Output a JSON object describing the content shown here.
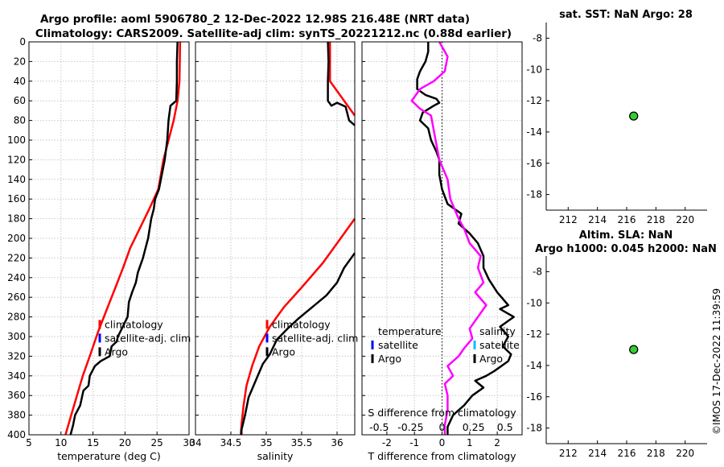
{
  "figure": {
    "title_line1": "Argo profile: aoml 5906780_2 12-Dec-2022 12.98S 216.48E (NRT data)",
    "title_line2": "Climatology: CARS2009. Satellite-adj clim: synTS_20221212.nc (0.88d earlier)",
    "footer_stamp": "©IMOS 17-Dec-2022 11:39:59"
  },
  "colors": {
    "climatology": "#ff0000",
    "satellite": "#0000ff",
    "argo": "#000000",
    "salinity_diff": "#ff00ff",
    "sat_salinity": "#00bfff",
    "marker": "#33cc33",
    "grid": "#c8c8d2"
  },
  "chart_data": [
    {
      "id": "temperature",
      "type": "line",
      "xlabel": "temperature (deg C)",
      "ylim": [
        0,
        400
      ],
      "xlim": [
        5,
        30
      ],
      "xticks": [
        5,
        10,
        15,
        20,
        25,
        30
      ],
      "yticks": [
        0,
        20,
        40,
        60,
        80,
        100,
        120,
        140,
        160,
        180,
        200,
        220,
        240,
        260,
        280,
        300,
        320,
        340,
        360,
        380,
        400
      ],
      "legend": [
        "climatology",
        "satellite-adj. clim",
        "Argo"
      ],
      "series": [
        {
          "name": "climatology",
          "color": "#ff0000",
          "points": [
            [
              28.6,
              0
            ],
            [
              28.5,
              40
            ],
            [
              28.2,
              60
            ],
            [
              27.6,
              80
            ],
            [
              26.8,
              100
            ],
            [
              26.0,
              120
            ],
            [
              25.2,
              150
            ],
            [
              23.8,
              170
            ],
            [
              22.3,
              190
            ],
            [
              20.8,
              210
            ],
            [
              19.7,
              230
            ],
            [
              18.5,
              250
            ],
            [
              17.0,
              275
            ],
            [
              15.8,
              295
            ],
            [
              14.5,
              320
            ],
            [
              13.4,
              340
            ],
            [
              12.5,
              360
            ],
            [
              11.6,
              380
            ],
            [
              10.7,
              400
            ]
          ]
        },
        {
          "name": "Argo",
          "color": "#000000",
          "points": [
            [
              28.2,
              0
            ],
            [
              28.1,
              20
            ],
            [
              28.1,
              40
            ],
            [
              28.0,
              60
            ],
            [
              27.1,
              65
            ],
            [
              26.8,
              80
            ],
            [
              26.6,
              100
            ],
            [
              26.2,
              120
            ],
            [
              25.6,
              140
            ],
            [
              25.3,
              150
            ],
            [
              24.7,
              160
            ],
            [
              24.5,
              170
            ],
            [
              24.1,
              180
            ],
            [
              23.6,
              200
            ],
            [
              23.2,
              210
            ],
            [
              22.8,
              220
            ],
            [
              22.0,
              235
            ],
            [
              21.7,
              245
            ],
            [
              21.1,
              255
            ],
            [
              20.6,
              265
            ],
            [
              20.4,
              280
            ],
            [
              18.9,
              300
            ],
            [
              18.7,
              305
            ],
            [
              17.9,
              310
            ],
            [
              17.6,
              320
            ],
            [
              16.2,
              325
            ],
            [
              15.3,
              330
            ],
            [
              14.5,
              340
            ],
            [
              14.3,
              350
            ],
            [
              13.5,
              355
            ],
            [
              13.0,
              370
            ],
            [
              12.2,
              380
            ],
            [
              11.9,
              390
            ],
            [
              11.5,
              400
            ]
          ]
        }
      ]
    },
    {
      "id": "salinity",
      "type": "line",
      "xlabel": "salinity",
      "ylim": [
        0,
        400
      ],
      "xlim": [
        34,
        36.25
      ],
      "xticks": [
        34,
        34.5,
        35,
        35.5,
        36
      ],
      "legend": [
        "climatology",
        "satellite-adj. clim",
        "Argo"
      ],
      "series": [
        {
          "name": "climatology",
          "color": "#ff0000",
          "points": [
            [
              35.9,
              0
            ],
            [
              35.9,
              40
            ],
            [
              36.0,
              50
            ],
            [
              36.1,
              60
            ],
            [
              36.25,
              75
            ]
          ]
        },
        {
          "name": "climatology_deep",
          "color": "#ff0000",
          "points": [
            [
              36.25,
              180
            ],
            [
              36.0,
              205
            ],
            [
              35.8,
              225
            ],
            [
              35.5,
              250
            ],
            [
              35.25,
              270
            ],
            [
              35.05,
              290
            ],
            [
              34.9,
              310
            ],
            [
              34.8,
              330
            ],
            [
              34.72,
              350
            ],
            [
              34.68,
              370
            ],
            [
              34.65,
              390
            ],
            [
              34.64,
              400
            ]
          ]
        },
        {
          "name": "Argo",
          "color": "#000000",
          "points": [
            [
              35.87,
              0
            ],
            [
              35.88,
              20
            ],
            [
              35.87,
              40
            ],
            [
              35.87,
              60
            ],
            [
              35.92,
              65
            ],
            [
              36.0,
              62
            ],
            [
              36.12,
              66
            ],
            [
              36.17,
              80
            ],
            [
              36.25,
              85
            ]
          ]
        },
        {
          "name": "Argo_deep",
          "color": "#000000",
          "points": [
            [
              36.25,
              215
            ],
            [
              36.1,
              230
            ],
            [
              36.0,
              245
            ],
            [
              35.85,
              258
            ],
            [
              35.65,
              270
            ],
            [
              35.45,
              282
            ],
            [
              35.3,
              292
            ],
            [
              35.15,
              303
            ],
            [
              35.05,
              318
            ],
            [
              34.95,
              328
            ],
            [
              34.85,
              345
            ],
            [
              34.75,
              362
            ],
            [
              34.7,
              380
            ],
            [
              34.65,
              395
            ],
            [
              34.65,
              400
            ]
          ]
        }
      ]
    },
    {
      "id": "difference",
      "type": "line",
      "xlabel": "T difference from climatology",
      "top_label": "S difference from climatology",
      "ylim": [
        0,
        400
      ],
      "xlim": [
        -2.9,
        2.9
      ],
      "xticks": [
        -2,
        -1,
        0,
        1,
        2
      ],
      "top_ticks": [
        "-0.5",
        "-0.25",
        "0",
        "0.25",
        "0.5"
      ],
      "legend_left": [
        "temperature",
        "satellite",
        "Argo"
      ],
      "legend_right": [
        "salinity",
        "satellite",
        "Argo"
      ],
      "series": [
        {
          "name": "T difference",
          "color": "#000000",
          "points": [
            [
              -0.5,
              0
            ],
            [
              -0.5,
              10
            ],
            [
              -0.6,
              20
            ],
            [
              -0.8,
              30
            ],
            [
              -0.9,
              38
            ],
            [
              -0.9,
              48
            ],
            [
              -0.6,
              54
            ],
            [
              -0.2,
              58
            ],
            [
              -0.1,
              62
            ],
            [
              -0.3,
              65
            ],
            [
              -0.7,
              72
            ],
            [
              -0.8,
              80
            ],
            [
              -0.5,
              88
            ],
            [
              -0.4,
              100
            ],
            [
              -0.2,
              112
            ],
            [
              -0.1,
              120
            ],
            [
              -0.1,
              135
            ],
            [
              0.0,
              150
            ],
            [
              0.2,
              165
            ],
            [
              0.7,
              175
            ],
            [
              0.6,
              185
            ],
            [
              1.0,
              195
            ],
            [
              1.3,
              205
            ],
            [
              1.5,
              218
            ],
            [
              1.5,
              230
            ],
            [
              1.7,
              242
            ],
            [
              2.0,
              255
            ],
            [
              2.4,
              268
            ],
            [
              2.1,
              272
            ],
            [
              2.6,
              280
            ],
            [
              2.1,
              290
            ],
            [
              2.4,
              300
            ],
            [
              2.2,
              310
            ],
            [
              2.5,
              318
            ],
            [
              2.4,
              325
            ],
            [
              1.9,
              335
            ],
            [
              1.6,
              340
            ],
            [
              1.2,
              345
            ],
            [
              1.5,
              352
            ],
            [
              1.1,
              360
            ],
            [
              0.8,
              370
            ],
            [
              0.4,
              380
            ],
            [
              0.2,
              392
            ],
            [
              0.2,
              400
            ]
          ]
        },
        {
          "name": "S difference",
          "color": "#ff00ff",
          "points": [
            [
              -0.1,
              0
            ],
            [
              0.2,
              15
            ],
            [
              0.1,
              30
            ],
            [
              -0.3,
              40
            ],
            [
              -0.8,
              48
            ],
            [
              -1.1,
              60
            ],
            [
              -0.8,
              68
            ],
            [
              -0.4,
              75
            ],
            [
              -0.3,
              90
            ],
            [
              -0.2,
              105
            ],
            [
              -0.1,
              120
            ],
            [
              0.2,
              140
            ],
            [
              0.3,
              160
            ],
            [
              0.6,
              180
            ],
            [
              0.8,
              190
            ],
            [
              1.0,
              205
            ],
            [
              1.4,
              218
            ],
            [
              1.3,
              230
            ],
            [
              1.5,
              245
            ],
            [
              1.2,
              255
            ],
            [
              1.6,
              268
            ],
            [
              1.3,
              280
            ],
            [
              1.0,
              292
            ],
            [
              1.1,
              302
            ],
            [
              0.8,
              312
            ],
            [
              0.6,
              320
            ],
            [
              0.2,
              330
            ],
            [
              0.4,
              340
            ],
            [
              0.1,
              348
            ],
            [
              0.2,
              360
            ],
            [
              0.2,
              375
            ],
            [
              0.1,
              390
            ],
            [
              0.1,
              400
            ]
          ]
        }
      ]
    },
    {
      "id": "sst",
      "type": "scatter",
      "title": "sat. SST: NaN Argo: 28",
      "xlim": [
        210.5,
        221.5
      ],
      "ylim": [
        -19,
        -7
      ],
      "xticks": [
        212,
        214,
        216,
        218,
        220
      ],
      "yticks": [
        -8,
        -10,
        -12,
        -14,
        -16,
        -18
      ],
      "points": [
        [
          216.48,
          -12.98
        ]
      ]
    },
    {
      "id": "sla",
      "type": "scatter",
      "title_line1": "Altim. SLA: NaN",
      "title_line2": "Argo h1000: 0.045 h2000: NaN",
      "xlim": [
        210.5,
        221.5
      ],
      "ylim": [
        -19,
        -7
      ],
      "xticks": [
        212,
        214,
        216,
        218,
        220
      ],
      "yticks": [
        -8,
        -10,
        -12,
        -14,
        -16,
        -18
      ],
      "points": [
        [
          216.48,
          -12.98
        ]
      ]
    }
  ]
}
